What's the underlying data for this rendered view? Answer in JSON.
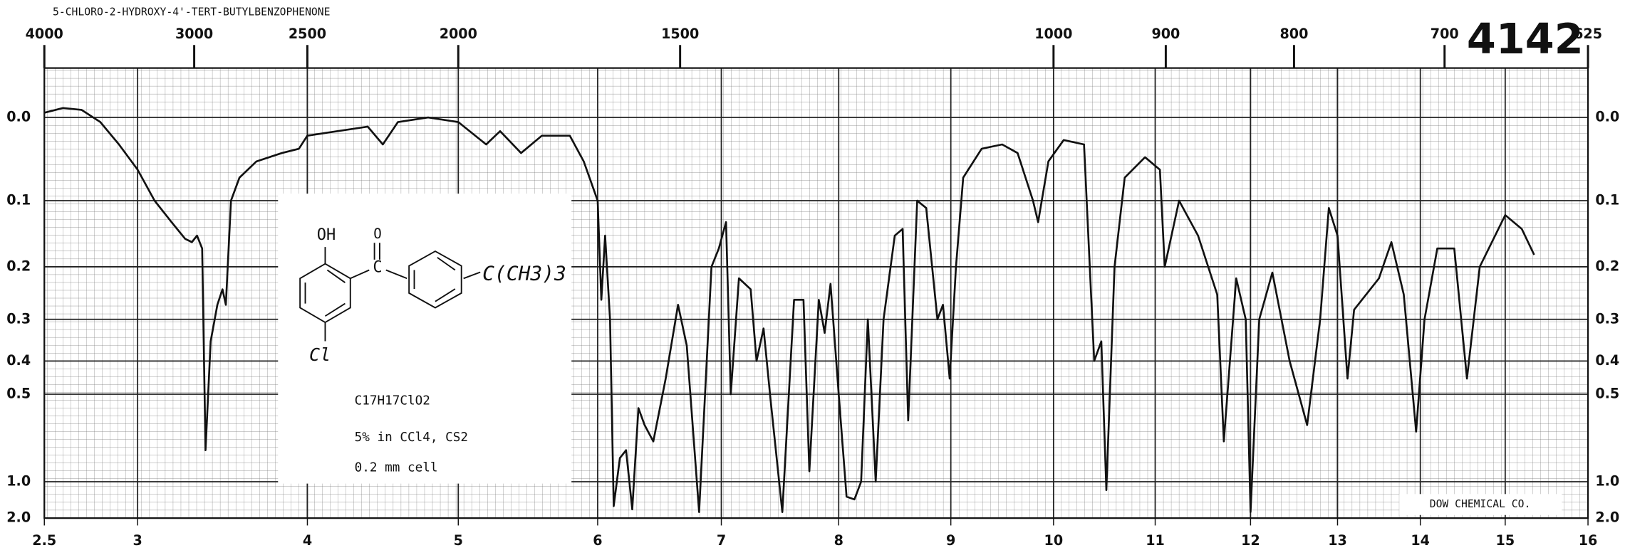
{
  "chart_data": {
    "type": "line",
    "title": "5-CHLORO-2-HYDROXY-4'-TERT-BUTYLBENZOPHENONE",
    "spectrum_number": "4142",
    "yscale": "absorbance",
    "grid": true,
    "color": "#111111",
    "annotations": [
      "C17H17ClO2",
      "5% in CCl4, CS2",
      "0.2 mm cell",
      "DOW CHEMICAL CO."
    ],
    "structure_labels": [
      "OH",
      "O",
      "C",
      "Cl",
      "C(CH3)3"
    ],
    "xlim": [
      2.5,
      16
    ],
    "xticks": [
      2.5,
      3,
      4,
      5,
      6,
      7,
      8,
      9,
      10,
      11,
      12,
      13,
      14,
      15,
      16
    ],
    "x2ticks": [
      4000,
      3000,
      2500,
      2000,
      1500,
      1000,
      900,
      800,
      700,
      625
    ],
    "ylim": [
      -0.05,
      2
    ],
    "yticks": [
      {
        "value": 0,
        "label": "0.0"
      },
      0.1,
      0.2,
      0.3,
      0.4,
      0.5,
      {
        "value": 1,
        "label": "1.0"
      },
      {
        "value": 2,
        "label": "2.0"
      }
    ],
    "x": [
      2.5,
      2.6,
      2.7,
      2.8,
      2.9,
      3.0,
      3.1,
      3.2,
      3.28,
      3.32,
      3.35,
      3.38,
      3.4,
      3.43,
      3.47,
      3.5,
      3.52,
      3.55,
      3.6,
      3.7,
      3.85,
      3.95,
      4.0,
      4.2,
      4.4,
      4.5,
      4.6,
      4.8,
      5.0,
      5.2,
      5.3,
      5.45,
      5.6,
      5.8,
      5.9,
      6.0,
      6.03,
      6.06,
      6.1,
      6.13,
      6.18,
      6.23,
      6.28,
      6.33,
      6.38,
      6.45,
      6.55,
      6.65,
      6.72,
      6.82,
      6.92,
      6.98,
      7.04,
      7.08,
      7.15,
      7.25,
      7.3,
      7.36,
      7.42,
      7.52,
      7.62,
      7.7,
      7.75,
      7.83,
      7.88,
      7.93,
      8.0,
      8.07,
      8.14,
      8.2,
      8.26,
      8.33,
      8.4,
      8.5,
      8.57,
      8.62,
      8.7,
      8.78,
      8.88,
      8.93,
      8.99,
      9.05,
      9.12,
      9.3,
      9.5,
      9.65,
      9.8,
      9.85,
      9.95,
      10.1,
      10.3,
      10.4,
      10.47,
      10.52,
      10.6,
      10.7,
      10.9,
      11.05,
      11.1,
      11.25,
      11.45,
      11.65,
      11.72,
      11.85,
      11.95,
      12.0,
      12.1,
      12.25,
      12.45,
      12.65,
      12.8,
      12.9,
      13.0,
      13.12,
      13.2,
      13.5,
      13.65,
      13.8,
      13.95,
      14.05,
      14.2,
      14.4,
      14.55,
      14.7,
      15.0,
      15.2,
      15.35
    ],
    "values": [
      -0.005,
      -0.01,
      -0.008,
      0.005,
      0.03,
      0.06,
      0.1,
      0.13,
      0.155,
      0.16,
      0.15,
      0.17,
      0.75,
      0.35,
      0.27,
      0.24,
      0.27,
      0.1,
      0.07,
      0.05,
      0.04,
      0.035,
      0.02,
      0.015,
      0.01,
      0.03,
      0.005,
      0.0,
      0.005,
      0.03,
      0.015,
      0.04,
      0.02,
      0.02,
      0.05,
      0.1,
      0.26,
      0.15,
      0.3,
      1.4,
      0.8,
      0.75,
      1.5,
      0.55,
      0.62,
      0.7,
      0.45,
      0.27,
      0.36,
      1.6,
      0.2,
      0.17,
      0.13,
      0.5,
      0.22,
      0.24,
      0.4,
      0.32,
      0.52,
      1.6,
      0.26,
      0.26,
      0.9,
      0.26,
      0.33,
      0.23,
      0.5,
      1.2,
      1.25,
      1.0,
      0.3,
      1.0,
      0.3,
      0.15,
      0.14,
      0.6,
      0.1,
      0.11,
      0.3,
      0.27,
      0.45,
      0.2,
      0.07,
      0.035,
      0.03,
      0.04,
      0.1,
      0.13,
      0.05,
      0.025,
      0.03,
      0.4,
      0.35,
      1.1,
      0.2,
      0.07,
      0.045,
      0.06,
      0.2,
      0.1,
      0.15,
      0.25,
      0.7,
      0.22,
      0.3,
      1.6,
      0.3,
      0.21,
      0.4,
      0.62,
      0.3,
      0.11,
      0.15,
      0.45,
      0.28,
      0.22,
      0.16,
      0.25,
      0.65,
      0.3,
      0.17,
      0.17,
      0.45,
      0.2,
      0.12,
      0.14,
      0.18
    ]
  }
}
